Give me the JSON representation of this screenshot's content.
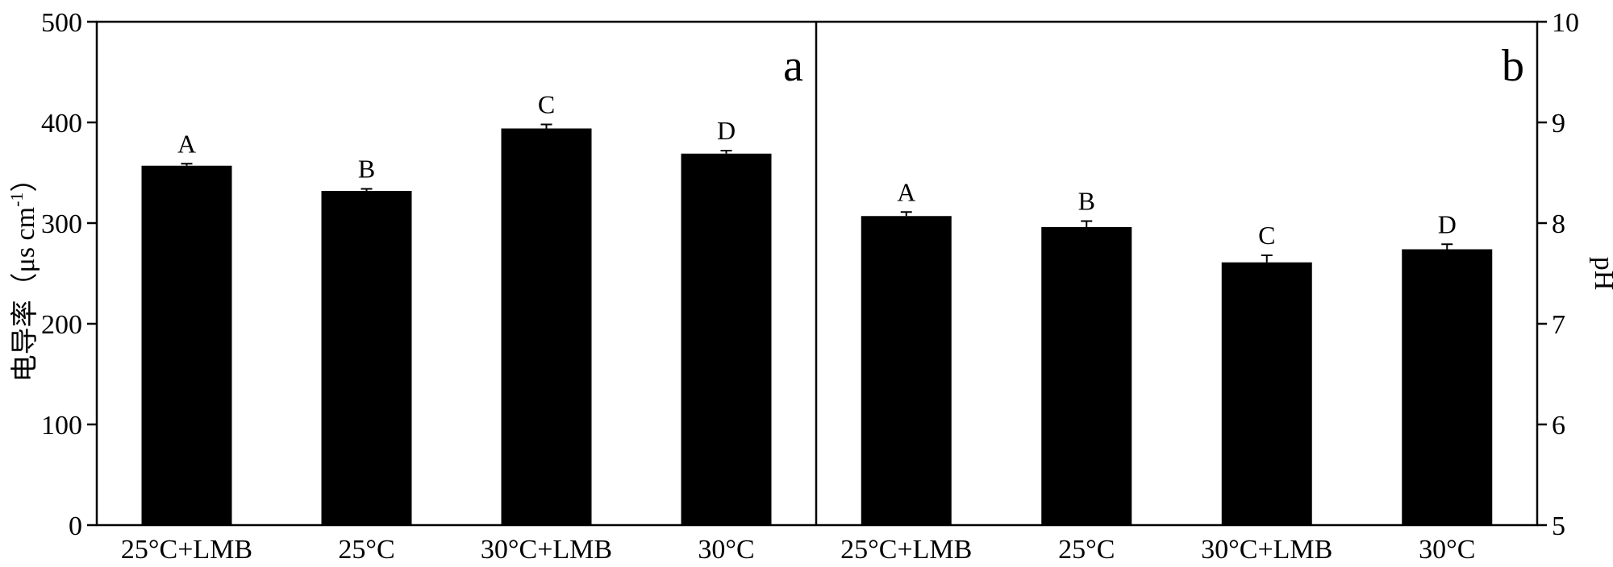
{
  "chart_data": [
    {
      "type": "bar",
      "panel_label": "a",
      "categories": [
        "25°C+LMB",
        "25°C",
        "30°C+LMB",
        "30°C"
      ],
      "values": [
        357,
        332,
        394,
        369
      ],
      "errors": [
        2,
        2,
        4,
        3
      ],
      "significance": [
        "A",
        "B",
        "C",
        "D"
      ],
      "ylabel": "电导率（μs cm",
      "ylabel_sup": "-1",
      "ylabel_close": "）",
      "ylim": [
        0,
        500
      ],
      "yticks": [
        "0",
        "100",
        "200",
        "300",
        "400",
        "500"
      ],
      "y_axis_side": "left",
      "bar_color": "#000000",
      "grid": false
    },
    {
      "type": "bar",
      "panel_label": "b",
      "categories": [
        "25°C+LMB",
        "25°C",
        "30°C+LMB",
        "30°C"
      ],
      "values": [
        8.07,
        7.96,
        7.61,
        7.74
      ],
      "errors": [
        0.04,
        0.06,
        0.07,
        0.05
      ],
      "significance": [
        "A",
        "B",
        "C",
        "D"
      ],
      "ylabel": "pH",
      "ylim": [
        5,
        10
      ],
      "yticks": [
        "5",
        "6",
        "7",
        "8",
        "9",
        "10"
      ],
      "y_axis_side": "right",
      "bar_color": "#000000",
      "grid": false
    }
  ]
}
